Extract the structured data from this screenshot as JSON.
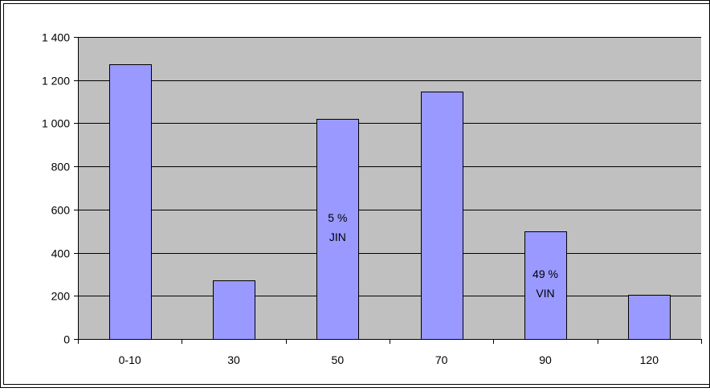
{
  "chart_data": {
    "type": "bar",
    "title": "",
    "xlabel": "",
    "ylabel": "",
    "categories": [
      "0-10",
      "30",
      "50",
      "70",
      "90",
      "120"
    ],
    "values": [
      1275,
      270,
      1020,
      1145,
      500,
      205
    ],
    "ylim": [
      0,
      1400
    ],
    "yticks": [
      0,
      200,
      400,
      600,
      800,
      1000,
      1200,
      1400
    ],
    "ytick_labels": [
      "0",
      "200",
      "400",
      "600",
      "800",
      "1 000",
      "1 200",
      "1 400"
    ],
    "grid": true,
    "legend": "none",
    "colors": {
      "bar_fill": "#9999ff",
      "bar_stroke": "#000000",
      "plot_background": "#c0c0c0",
      "gridline": "#000000",
      "text": "#000000"
    },
    "annotations": [
      {
        "category": "50",
        "lines": [
          "5 %",
          "JIN"
        ]
      },
      {
        "category": "90",
        "lines": [
          "49 %",
          "VIN"
        ]
      }
    ]
  }
}
